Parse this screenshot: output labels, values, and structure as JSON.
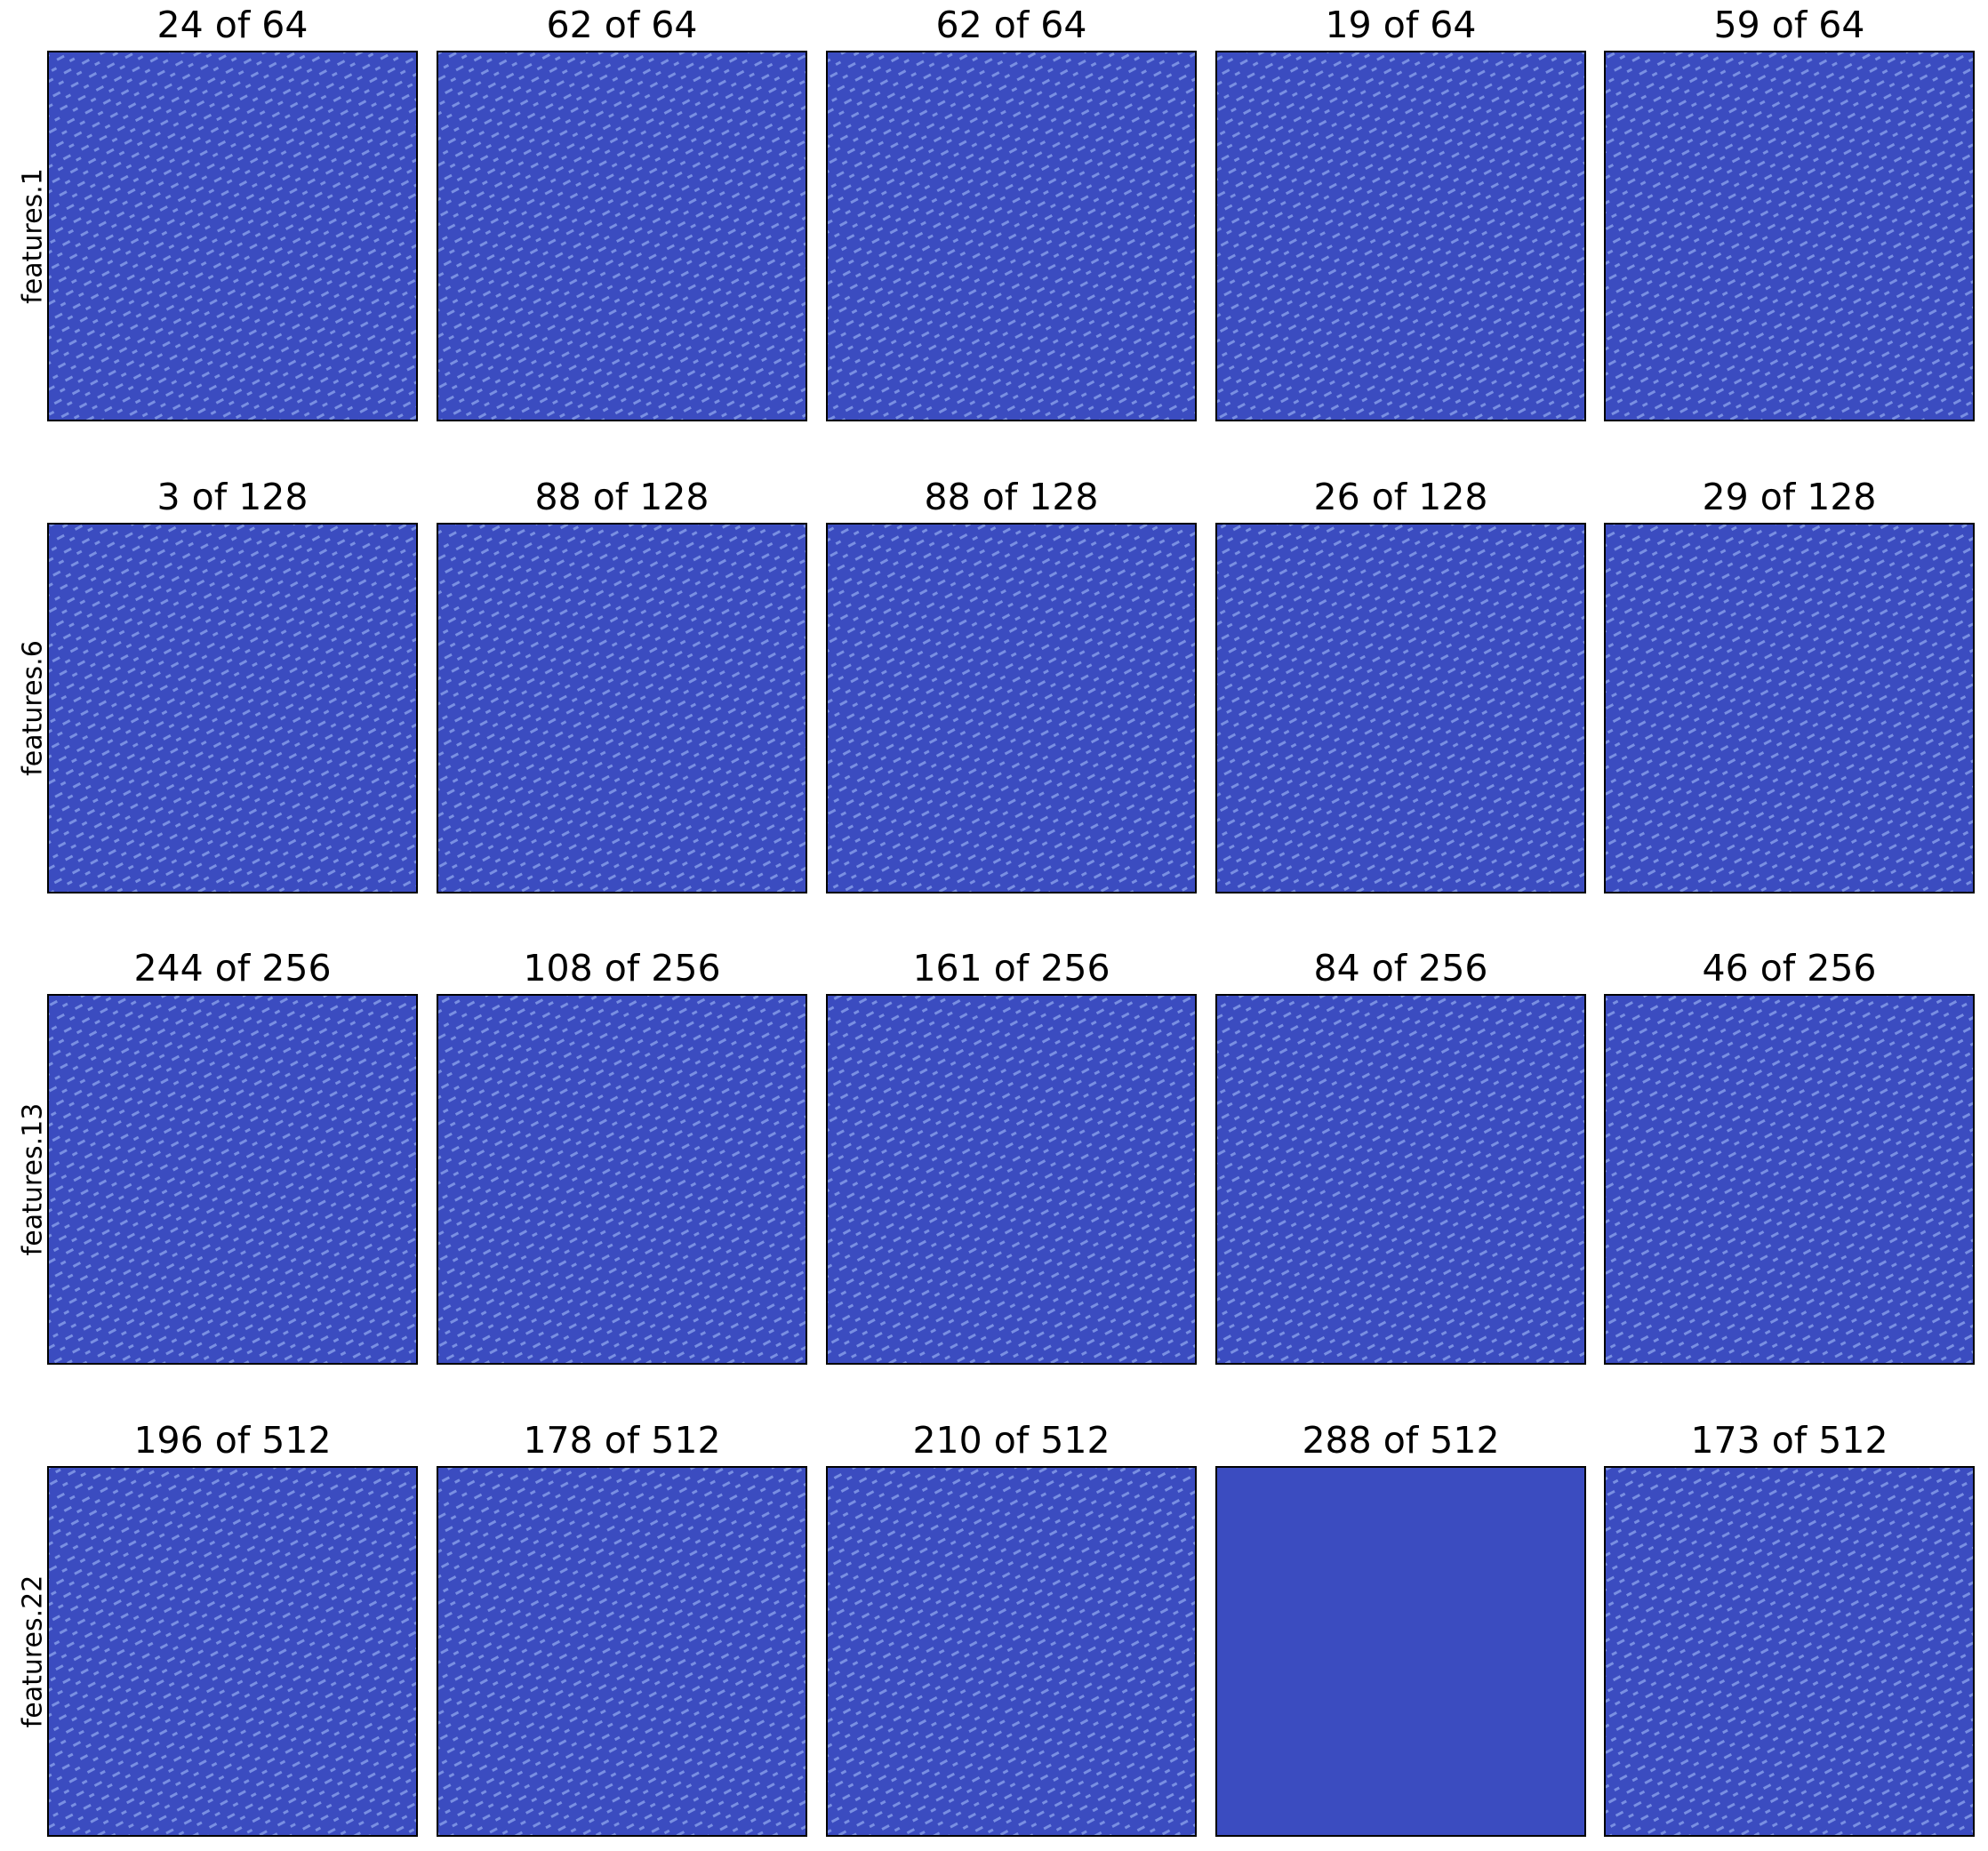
{
  "rows": [
    {
      "label": "features.1",
      "panels": [
        "24 of 64",
        "62 of 64",
        "62 of 64",
        "19 of 64",
        "59 of 64"
      ]
    },
    {
      "label": "features.6",
      "panels": [
        "3 of 128",
        "88 of 128",
        "88 of 128",
        "26 of 128",
        "29 of 128"
      ]
    },
    {
      "label": "features.13",
      "panels": [
        "244 of 256",
        "108 of 256",
        "161 of 256",
        "84 of 256",
        "46 of 256"
      ]
    },
    {
      "label": "features.22",
      "panels": [
        "196 of 512",
        "178 of 512",
        "210 of 512",
        "288 of 512",
        "173 of 512"
      ]
    }
  ]
}
